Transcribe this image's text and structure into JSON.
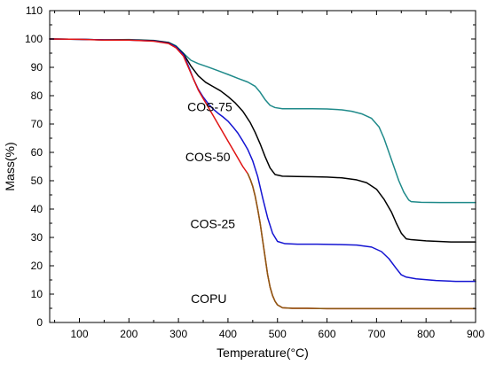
{
  "chart_data": {
    "type": "line",
    "title": "",
    "xlabel": "Temperature(",
    "xlabel_unit": "°C",
    "xlabel_close": ")",
    "ylabel": "Mass(%)",
    "xlim": [
      40,
      900
    ],
    "ylim": [
      0,
      110
    ],
    "xticks": [
      100,
      200,
      300,
      400,
      500,
      600,
      700,
      800,
      900
    ],
    "yticks": [
      0,
      10,
      20,
      30,
      40,
      50,
      60,
      70,
      80,
      90,
      100,
      110
    ],
    "grid": false,
    "legend": "none",
    "series": [
      {
        "name": "COS-75",
        "color": "#1f8a8a",
        "label_at": [
          318,
          74.5
        ],
        "points": [
          [
            40,
            100
          ],
          [
            100,
            99.9
          ],
          [
            150,
            99.7
          ],
          [
            200,
            99.8
          ],
          [
            250,
            99.5
          ],
          [
            280,
            98.8
          ],
          [
            295,
            97.6
          ],
          [
            310,
            95
          ],
          [
            325,
            92.5
          ],
          [
            340,
            91.3
          ],
          [
            360,
            90.1
          ],
          [
            380,
            88.8
          ],
          [
            400,
            87.5
          ],
          [
            420,
            86.1
          ],
          [
            440,
            84.8
          ],
          [
            455,
            83.3
          ],
          [
            465,
            81.2
          ],
          [
            475,
            78.6
          ],
          [
            485,
            76.6
          ],
          [
            495,
            75.8
          ],
          [
            510,
            75.4
          ],
          [
            540,
            75.4
          ],
          [
            570,
            75.4
          ],
          [
            600,
            75.3
          ],
          [
            630,
            75
          ],
          [
            650,
            74.5
          ],
          [
            670,
            73.6
          ],
          [
            690,
            72
          ],
          [
            705,
            69
          ],
          [
            715,
            65
          ],
          [
            725,
            60
          ],
          [
            735,
            55
          ],
          [
            745,
            50
          ],
          [
            755,
            46
          ],
          [
            765,
            43.2
          ],
          [
            770,
            42.6
          ],
          [
            790,
            42.4
          ],
          [
            830,
            42.3
          ],
          [
            870,
            42.3
          ],
          [
            900,
            42.3
          ]
        ]
      },
      {
        "name": "COS-50",
        "color": "#000000",
        "label_at": [
          314,
          56.8
        ],
        "points": [
          [
            40,
            100
          ],
          [
            100,
            99.9
          ],
          [
            150,
            99.7
          ],
          [
            200,
            99.7
          ],
          [
            250,
            99.4
          ],
          [
            280,
            98.7
          ],
          [
            295,
            97.3
          ],
          [
            310,
            94.8
          ],
          [
            325,
            90.5
          ],
          [
            340,
            87
          ],
          [
            355,
            84.7
          ],
          [
            370,
            83.2
          ],
          [
            385,
            81.7
          ],
          [
            400,
            79.7
          ],
          [
            415,
            77.4
          ],
          [
            430,
            74.5
          ],
          [
            445,
            70.5
          ],
          [
            455,
            67
          ],
          [
            465,
            63
          ],
          [
            475,
            58.5
          ],
          [
            485,
            54.5
          ],
          [
            495,
            52.2
          ],
          [
            510,
            51.6
          ],
          [
            540,
            51.5
          ],
          [
            570,
            51.4
          ],
          [
            600,
            51.3
          ],
          [
            630,
            51
          ],
          [
            660,
            50.3
          ],
          [
            680,
            49.3
          ],
          [
            700,
            47
          ],
          [
            715,
            43.5
          ],
          [
            730,
            39
          ],
          [
            740,
            35
          ],
          [
            750,
            31.5
          ],
          [
            760,
            29.5
          ],
          [
            770,
            29.2
          ],
          [
            800,
            28.8
          ],
          [
            850,
            28.4
          ],
          [
            900,
            28.4
          ]
        ]
      },
      {
        "name": "COS-25",
        "color": "#1414d2",
        "label_at": [
          324,
          33.3
        ],
        "points": [
          [
            40,
            100
          ],
          [
            100,
            99.9
          ],
          [
            150,
            99.7
          ],
          [
            200,
            99.6
          ],
          [
            250,
            99.3
          ],
          [
            280,
            98.5
          ],
          [
            295,
            97.2
          ],
          [
            310,
            94.5
          ],
          [
            320,
            90.5
          ],
          [
            330,
            86
          ],
          [
            340,
            82.3
          ],
          [
            350,
            79.5
          ],
          [
            360,
            77.2
          ],
          [
            370,
            75.3
          ],
          [
            380,
            73.8
          ],
          [
            390,
            72.5
          ],
          [
            400,
            71
          ],
          [
            410,
            69
          ],
          [
            420,
            66.8
          ],
          [
            430,
            64
          ],
          [
            440,
            61
          ],
          [
            450,
            57
          ],
          [
            460,
            51.5
          ],
          [
            470,
            44
          ],
          [
            480,
            37
          ],
          [
            490,
            31.5
          ],
          [
            500,
            28.6
          ],
          [
            515,
            27.8
          ],
          [
            540,
            27.6
          ],
          [
            580,
            27.6
          ],
          [
            620,
            27.5
          ],
          [
            660,
            27.3
          ],
          [
            690,
            26.6
          ],
          [
            710,
            25
          ],
          [
            725,
            22.5
          ],
          [
            740,
            19
          ],
          [
            750,
            16.8
          ],
          [
            760,
            16
          ],
          [
            780,
            15.4
          ],
          [
            820,
            14.8
          ],
          [
            860,
            14.5
          ],
          [
            900,
            14.5
          ]
        ]
      },
      {
        "name": "COPU",
        "color": "#e01414",
        "overlay_color": "#8b5a12",
        "overlay_from": 440,
        "label_at": [
          325,
          6.8
        ],
        "points": [
          [
            40,
            100
          ],
          [
            100,
            99.9
          ],
          [
            150,
            99.6
          ],
          [
            200,
            99.6
          ],
          [
            250,
            99.2
          ],
          [
            280,
            98.4
          ],
          [
            295,
            96.9
          ],
          [
            310,
            94
          ],
          [
            320,
            90
          ],
          [
            330,
            86
          ],
          [
            340,
            82
          ],
          [
            350,
            79
          ],
          [
            360,
            76
          ],
          [
            370,
            73
          ],
          [
            380,
            70
          ],
          [
            390,
            67
          ],
          [
            400,
            64
          ],
          [
            410,
            61
          ],
          [
            420,
            58
          ],
          [
            430,
            55
          ],
          [
            440,
            52.5
          ],
          [
            445,
            50.5
          ],
          [
            450,
            48
          ],
          [
            455,
            44.5
          ],
          [
            460,
            40
          ],
          [
            465,
            35
          ],
          [
            470,
            29
          ],
          [
            475,
            23
          ],
          [
            480,
            17
          ],
          [
            485,
            12.5
          ],
          [
            490,
            9.5
          ],
          [
            495,
            7.5
          ],
          [
            500,
            6.2
          ],
          [
            510,
            5.2
          ],
          [
            530,
            5
          ],
          [
            560,
            5
          ],
          [
            600,
            4.9
          ],
          [
            700,
            4.9
          ],
          [
            800,
            4.9
          ],
          [
            900,
            4.9
          ]
        ]
      }
    ]
  }
}
